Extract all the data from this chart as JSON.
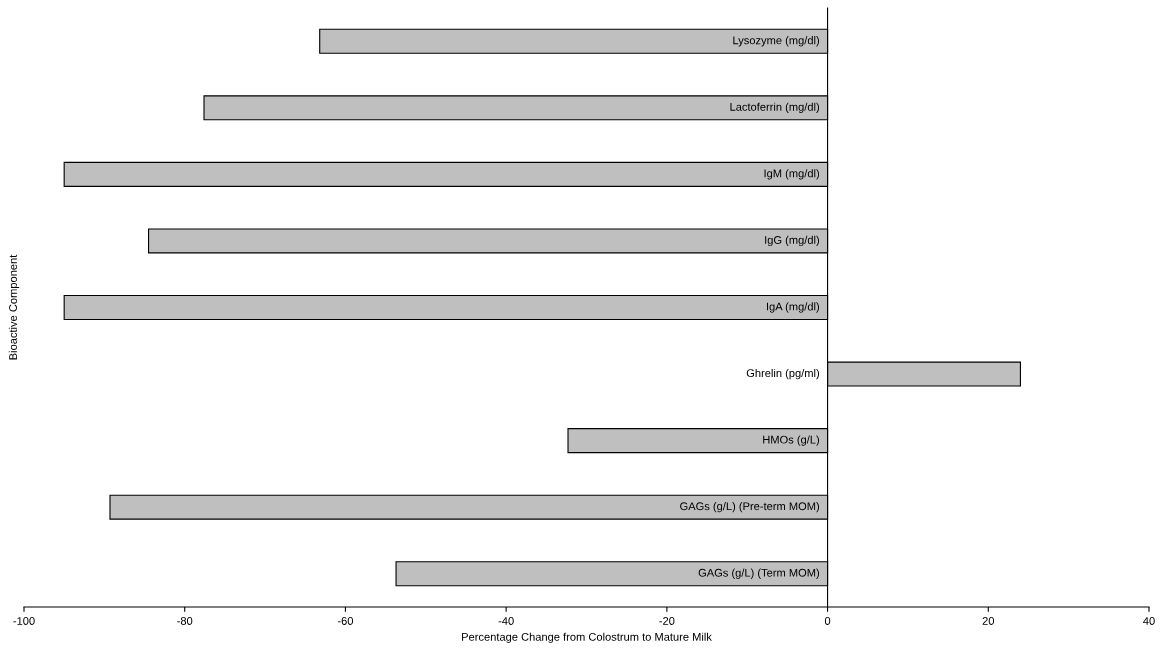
{
  "chart_data": {
    "type": "bar",
    "orientation": "horizontal",
    "xlabel": "Percentage Change from Colostrum to Mature Milk",
    "ylabel": "Bioactive Component",
    "categories": [
      "Lysozyme (mg/dl)",
      "Lactoferrin (mg/dl)",
      "IgM (mg/dl)",
      "IgG (mg/dl)",
      "IgA (mg/dl)",
      "Ghrelin (pg/ml)",
      "HMOs (g/L)",
      "GAGs (g/L) (Pre-term MOM)",
      "GAGs (g/L) (Term MOM)"
    ],
    "values": [
      -63.2,
      -77.6,
      -95.0,
      -84.5,
      -95.0,
      24.0,
      -32.3,
      -89.3,
      -53.7
    ],
    "color": "#bfbfbf",
    "xlim": [
      -100,
      40
    ],
    "xticks": [
      -100,
      -80,
      -60,
      -40,
      -20,
      0,
      20,
      40
    ],
    "grid": false,
    "legend": false
  }
}
